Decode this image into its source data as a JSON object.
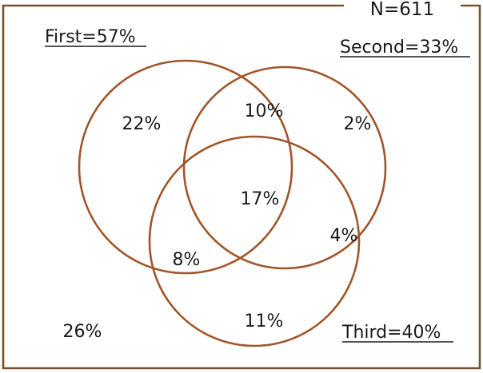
{
  "n_label": "N=611",
  "sets": {
    "first": {
      "label": "First=57%",
      "color": "#a0552a"
    },
    "second": {
      "label": "Second=33%",
      "color": "#a0552a"
    },
    "third": {
      "label": "Third=40%",
      "color": "#a0552a"
    }
  },
  "regions": {
    "first_only": "22%",
    "first_second": "10%",
    "second_only": "2%",
    "all_three": "17%",
    "second_third": "4%",
    "first_third": "8%",
    "third_only": "11%",
    "none": "26%"
  },
  "colors": {
    "frame": "#7a5230",
    "text": "#1a1a1a",
    "background": "#ffffff"
  }
}
